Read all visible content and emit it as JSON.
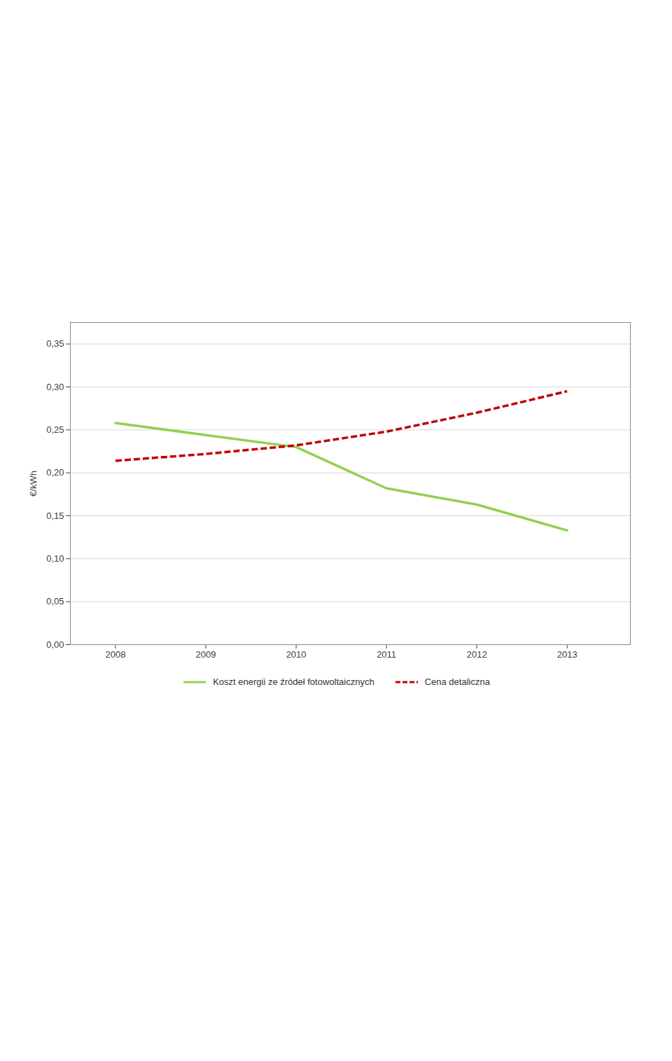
{
  "chart_data": {
    "type": "line",
    "x": [
      2008,
      2009,
      2010,
      2011,
      2012,
      2013
    ],
    "series": [
      {
        "name": "Koszt energii ze źródeł fotowoltaicznych",
        "color": "#92D050",
        "line_style": "solid",
        "values": [
          0.258,
          0.244,
          0.23,
          0.182,
          0.163,
          0.133
        ]
      },
      {
        "name": "Cena detaliczna",
        "color": "#C00000",
        "line_style": "dashed",
        "values": [
          0.214,
          0.222,
          0.232,
          0.248,
          0.27,
          0.295
        ]
      }
    ],
    "ylabel": "€/kWh",
    "xlim": [
      2007.5,
      2013.7
    ],
    "xticks": [
      2008,
      2009,
      2010,
      2011,
      2012,
      2013
    ],
    "ylim": [
      0.0,
      0.375
    ],
    "yticks": [
      {
        "value": 0.0,
        "label": "0,00"
      },
      {
        "value": 0.05,
        "label": "0,05"
      },
      {
        "value": 0.1,
        "label": "0,10"
      },
      {
        "value": 0.15,
        "label": "0,15"
      },
      {
        "value": 0.2,
        "label": "0,20"
      },
      {
        "value": 0.25,
        "label": "0,25"
      },
      {
        "value": 0.3,
        "label": "0,30"
      },
      {
        "value": 0.35,
        "label": "0,35"
      }
    ],
    "grid": true,
    "legend": "bottom"
  }
}
